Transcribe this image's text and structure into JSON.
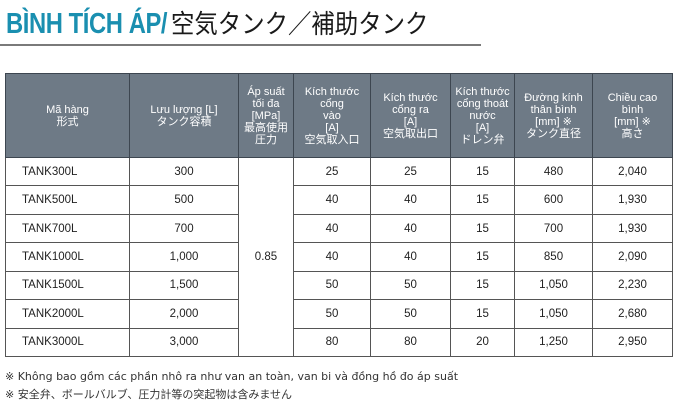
{
  "title": {
    "vn": "BÌNH TÍCH ÁP/",
    "jp": "空気タンク／補助タンク"
  },
  "table": {
    "headers": [
      [
        "Mã hàng",
        "形式"
      ],
      [
        "Lưu lượng [L]",
        "タンク容積"
      ],
      [
        "Áp suất",
        "tối đa",
        "[MPa]",
        "最高使用",
        "圧力"
      ],
      [
        "Kích thước cổng",
        "vào",
        "[A]",
        "空気取入口"
      ],
      [
        "Kích thước",
        "cổng ra",
        "[A]",
        "空気取出口"
      ],
      [
        "Kích thước",
        "cổng thoát",
        "nước",
        "[A]",
        "ドレン弁"
      ],
      [
        "Đường kính",
        "thân bình",
        "[mm] ※",
        "タンク直径"
      ],
      [
        "Chiều cao",
        "bình",
        "[mm] ※",
        "高さ"
      ]
    ],
    "pressure": "0.85",
    "rows": [
      {
        "model": "TANK300L",
        "volume": "300",
        "inlet": "25",
        "outlet": "25",
        "drain": "15",
        "diameter": "480",
        "height": "2,040"
      },
      {
        "model": "TANK500L",
        "volume": "500",
        "inlet": "40",
        "outlet": "40",
        "drain": "15",
        "diameter": "600",
        "height": "1,930"
      },
      {
        "model": "TANK700L",
        "volume": "700",
        "inlet": "40",
        "outlet": "40",
        "drain": "15",
        "diameter": "700",
        "height": "1,930"
      },
      {
        "model": "TANK1000L",
        "volume": "1,000",
        "inlet": "40",
        "outlet": "40",
        "drain": "15",
        "diameter": "850",
        "height": "2,090"
      },
      {
        "model": "TANK1500L",
        "volume": "1,500",
        "inlet": "50",
        "outlet": "50",
        "drain": "15",
        "diameter": "1,050",
        "height": "2,230"
      },
      {
        "model": "TANK2000L",
        "volume": "2,000",
        "inlet": "50",
        "outlet": "50",
        "drain": "15",
        "diameter": "1,050",
        "height": "2,680"
      },
      {
        "model": "TANK3000L",
        "volume": "3,000",
        "inlet": "80",
        "outlet": "80",
        "drain": "20",
        "diameter": "1,250",
        "height": "2,950"
      }
    ]
  },
  "footnotes": [
    "※ Không bao gồm các phần nhô ra như van an toàn, van bi và đồng hồ đo áp suất",
    "※ 安全弁、ボールバルブ、圧力計等の突起物は含みません"
  ]
}
